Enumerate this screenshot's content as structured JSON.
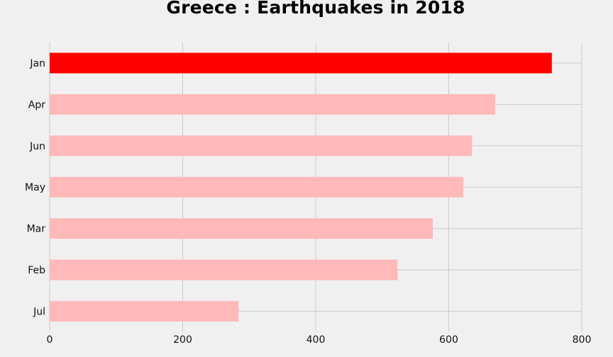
{
  "chart_data": {
    "type": "bar",
    "orientation": "horizontal",
    "title": "Greece : Earthquakes in 2018",
    "xlabel": "",
    "ylabel": "",
    "categories": [
      "Jan",
      "Apr",
      "Jun",
      "May",
      "Mar",
      "Feb",
      "Jul"
    ],
    "values": [
      755,
      670,
      635,
      622,
      576,
      523,
      284
    ],
    "xlim": [
      0,
      800
    ],
    "xticks": [
      0,
      200,
      400,
      600,
      800
    ],
    "grid": true,
    "colors": {
      "highlight": "#ff0000",
      "default": "#ffb9b9",
      "grid": "#cbcbcb",
      "background": "#f0f0f0"
    },
    "highlight_index": 0
  }
}
